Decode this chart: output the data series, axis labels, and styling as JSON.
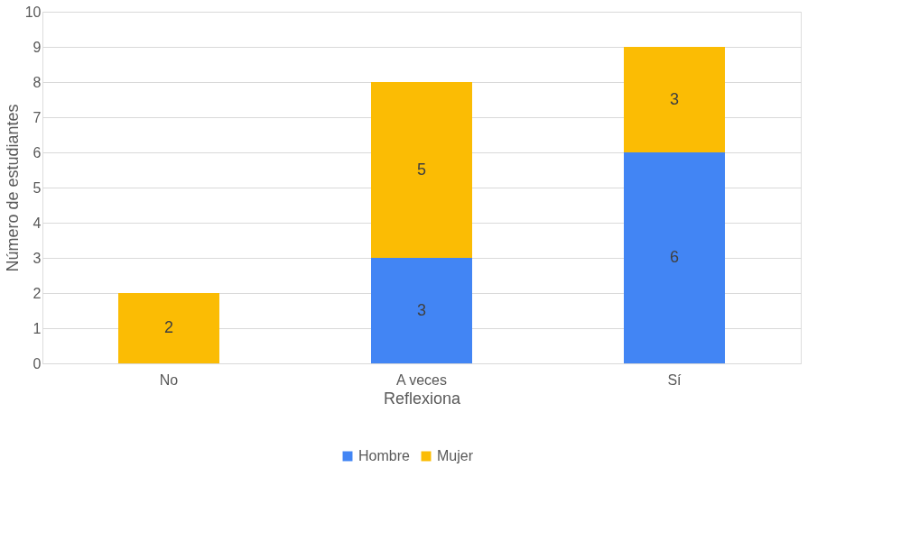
{
  "chart_data": {
    "type": "bar",
    "stacked": true,
    "xlabel": "Reflexiona",
    "ylabel": "Número de estudiantes",
    "categories": [
      "No",
      "A veces",
      "Sí"
    ],
    "series": [
      {
        "name": "Hombre",
        "color": "#4285f4",
        "values": [
          0,
          3,
          6
        ],
        "value_labels": [
          null,
          "3",
          "6"
        ]
      },
      {
        "name": "Mujer",
        "color": "#fbbc04",
        "values": [
          2,
          5,
          3
        ],
        "value_labels": [
          "2",
          "5",
          "3"
        ]
      }
    ],
    "ylim": [
      0,
      10
    ],
    "yticks": [
      0,
      1,
      2,
      3,
      4,
      5,
      6,
      7,
      8,
      9,
      10
    ],
    "grid": "y",
    "legend": "bottom"
  }
}
